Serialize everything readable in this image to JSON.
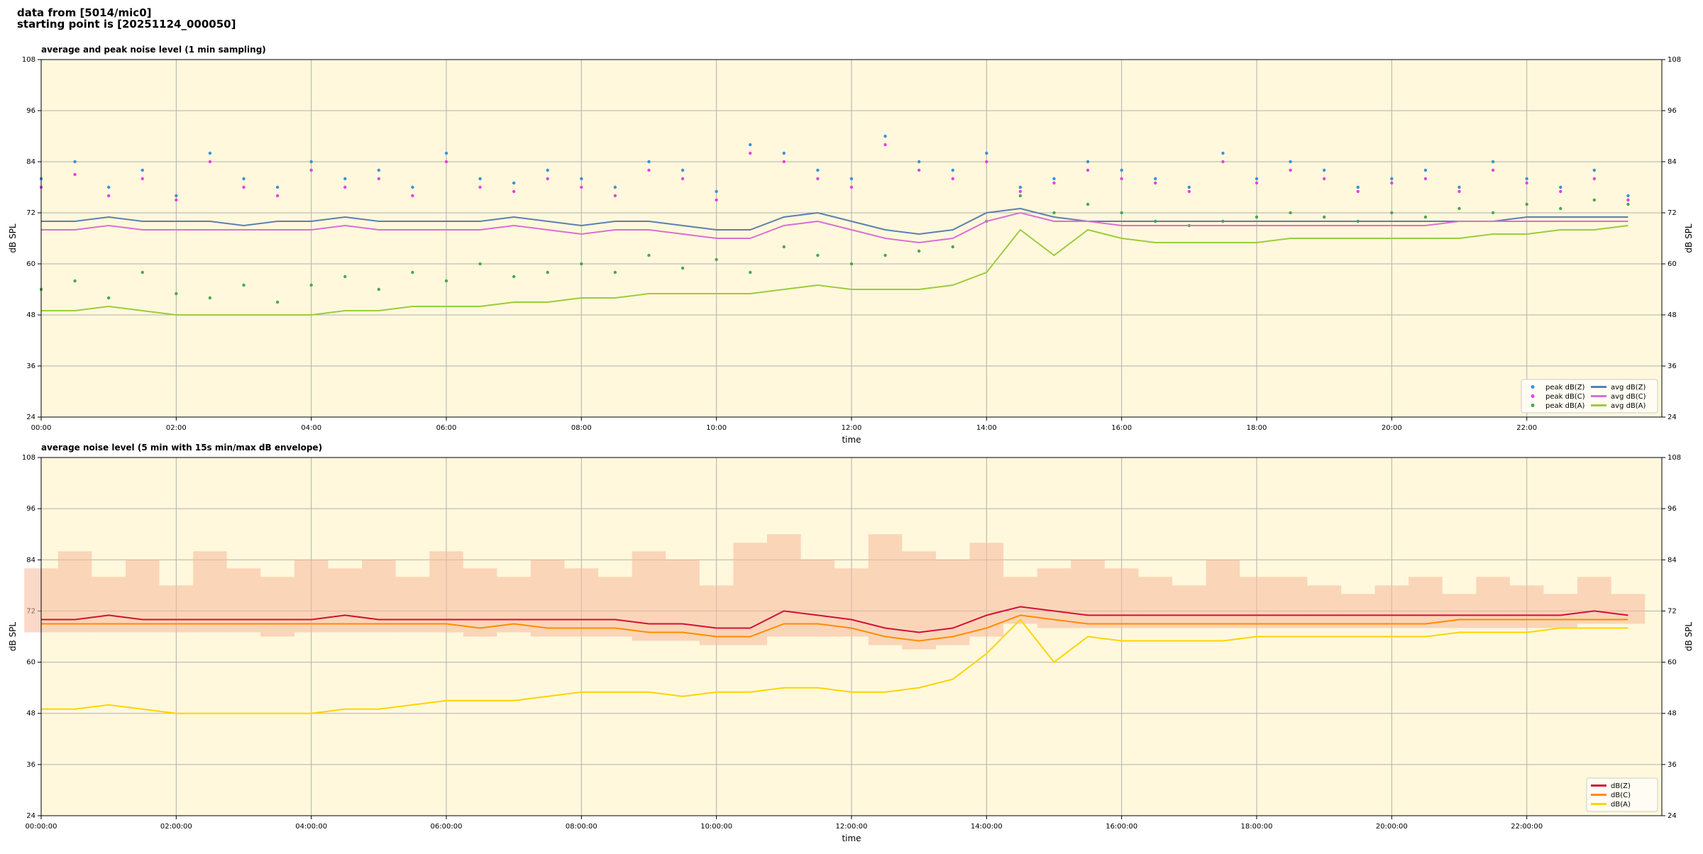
{
  "figure_title": [
    "data from [5014/mic0]",
    "starting point is [20251124_000050]"
  ],
  "chart_data": [
    {
      "type": "line",
      "title": "average and peak noise level (1 min sampling)",
      "xlabel": "time",
      "ylabel": "dB SPL",
      "xlim": [
        0,
        24
      ],
      "ylim": [
        24,
        108
      ],
      "yticks": [
        24,
        36,
        48,
        60,
        72,
        84,
        96,
        108
      ],
      "grid": true,
      "legend": "lower right",
      "xticks": [
        {
          "value": 0,
          "label": "00:00"
        },
        {
          "value": 2,
          "label": "02:00"
        },
        {
          "value": 4,
          "label": "04:00"
        },
        {
          "value": 6,
          "label": "06:00"
        },
        {
          "value": 8,
          "label": "08:00"
        },
        {
          "value": 10,
          "label": "10:00"
        },
        {
          "value": 12,
          "label": "12:00"
        },
        {
          "value": 14,
          "label": "14:00"
        },
        {
          "value": 16,
          "label": "16:00"
        },
        {
          "value": 18,
          "label": "18:00"
        },
        {
          "value": 20,
          "label": "20:00"
        },
        {
          "value": 22,
          "label": "22:00"
        }
      ],
      "x": [
        0,
        0.5,
        1,
        1.5,
        2,
        2.5,
        3,
        3.5,
        4,
        4.5,
        5,
        5.5,
        6,
        6.5,
        7,
        7.5,
        8,
        8.5,
        9,
        9.5,
        10,
        10.5,
        11,
        11.5,
        12,
        12.5,
        13,
        13.5,
        14,
        14.5,
        15,
        15.5,
        16,
        16.5,
        17,
        17.5,
        18,
        18.5,
        19,
        19.5,
        20,
        20.5,
        21,
        21.5,
        22,
        22.5,
        23,
        23.5
      ],
      "series": [
        {
          "name": "peak dB(Z)",
          "type": "scatter",
          "color": "#3b8fd9",
          "values": [
            80,
            84,
            78,
            82,
            76,
            86,
            80,
            78,
            84,
            80,
            82,
            78,
            86,
            80,
            79,
            82,
            80,
            78,
            84,
            82,
            77,
            88,
            86,
            82,
            80,
            90,
            84,
            82,
            86,
            78,
            80,
            84,
            82,
            80,
            78,
            86,
            80,
            84,
            82,
            78,
            80,
            82,
            78,
            84,
            80,
            78,
            82,
            76
          ]
        },
        {
          "name": "peak dB(C)",
          "type": "scatter",
          "color": "#e83ee8",
          "values": [
            78,
            81,
            76,
            80,
            75,
            84,
            78,
            76,
            82,
            78,
            80,
            76,
            84,
            78,
            77,
            80,
            78,
            76,
            82,
            80,
            75,
            86,
            84,
            80,
            78,
            88,
            82,
            80,
            84,
            77,
            79,
            82,
            80,
            79,
            77,
            84,
            79,
            82,
            80,
            77,
            79,
            80,
            77,
            82,
            79,
            77,
            80,
            75
          ]
        },
        {
          "name": "peak dB(A)",
          "type": "scatter",
          "color": "#4aa84a",
          "values": [
            54,
            56,
            52,
            58,
            53,
            52,
            55,
            51,
            55,
            57,
            54,
            58,
            56,
            60,
            57,
            58,
            60,
            58,
            62,
            59,
            61,
            58,
            64,
            62,
            60,
            62,
            63,
            64,
            70,
            76,
            72,
            74,
            72,
            70,
            69,
            70,
            71,
            72,
            71,
            70,
            72,
            71,
            73,
            72,
            74,
            73,
            75,
            74
          ]
        },
        {
          "name": "avg dB(Z)",
          "type": "line",
          "color": "#5b7fb0",
          "values": [
            70,
            70,
            71,
            70,
            70,
            70,
            69,
            70,
            70,
            71,
            70,
            70,
            70,
            70,
            71,
            70,
            69,
            70,
            70,
            69,
            68,
            68,
            71,
            72,
            70,
            68,
            67,
            68,
            72,
            73,
            71,
            70,
            70,
            70,
            70,
            70,
            70,
            70,
            70,
            70,
            70,
            70,
            70,
            70,
            71,
            71,
            71,
            71
          ]
        },
        {
          "name": "avg dB(C)",
          "type": "line",
          "color": "#d96fd6",
          "values": [
            68,
            68,
            69,
            68,
            68,
            68,
            68,
            68,
            68,
            69,
            68,
            68,
            68,
            68,
            69,
            68,
            67,
            68,
            68,
            67,
            66,
            66,
            69,
            70,
            68,
            66,
            65,
            66,
            70,
            72,
            70,
            70,
            69,
            69,
            69,
            69,
            69,
            69,
            69,
            69,
            69,
            69,
            70,
            70,
            70,
            70,
            70,
            70
          ]
        },
        {
          "name": "avg dB(A)",
          "type": "line",
          "color": "#9ccc3c",
          "values": [
            49,
            49,
            50,
            49,
            48,
            48,
            48,
            48,
            48,
            49,
            49,
            50,
            50,
            50,
            51,
            51,
            52,
            52,
            53,
            53,
            53,
            53,
            54,
            55,
            54,
            54,
            54,
            55,
            58,
            68,
            62,
            68,
            66,
            65,
            65,
            65,
            65,
            66,
            66,
            66,
            66,
            66,
            66,
            67,
            67,
            68,
            68,
            69
          ]
        }
      ]
    },
    {
      "type": "line",
      "title": "average noise level (5 min with 15s min/max dB envelope)",
      "xlabel": "time",
      "ylabel": "dB SPL",
      "xlim": [
        0,
        24
      ],
      "ylim": [
        24,
        108
      ],
      "yticks": [
        24,
        36,
        48,
        60,
        72,
        84,
        96,
        108
      ],
      "grid": true,
      "legend": "lower right",
      "xticks": [
        {
          "value": 0,
          "label": "00:00:00"
        },
        {
          "value": 2,
          "label": "02:00:00"
        },
        {
          "value": 4,
          "label": "04:00:00"
        },
        {
          "value": 6,
          "label": "06:00:00"
        },
        {
          "value": 8,
          "label": "08:00:00"
        },
        {
          "value": 10,
          "label": "10:00:00"
        },
        {
          "value": 12,
          "label": "12:00:00"
        },
        {
          "value": 14,
          "label": "14:00:00"
        },
        {
          "value": 16,
          "label": "16:00:00"
        },
        {
          "value": 18,
          "label": "18:00:00"
        },
        {
          "value": 20,
          "label": "20:00:00"
        },
        {
          "value": 22,
          "label": "22:00:00"
        }
      ],
      "x": [
        0,
        0.5,
        1,
        1.5,
        2,
        2.5,
        3,
        3.5,
        4,
        4.5,
        5,
        5.5,
        6,
        6.5,
        7,
        7.5,
        8,
        8.5,
        9,
        9.5,
        10,
        10.5,
        11,
        11.5,
        12,
        12.5,
        13,
        13.5,
        14,
        14.5,
        15,
        15.5,
        16,
        16.5,
        17,
        17.5,
        18,
        18.5,
        19,
        19.5,
        20,
        20.5,
        21,
        21.5,
        22,
        22.5,
        23,
        23.5
      ],
      "envelope": {
        "color": "#f7b89a",
        "low": [
          67,
          67,
          67,
          67,
          67,
          67,
          67,
          66,
          67,
          67,
          67,
          67,
          67,
          66,
          67,
          66,
          66,
          66,
          65,
          65,
          64,
          64,
          66,
          66,
          66,
          64,
          63,
          64,
          66,
          69,
          68,
          68,
          68,
          68,
          68,
          68,
          68,
          68,
          68,
          68,
          68,
          68,
          68,
          68,
          68,
          68,
          69,
          69
        ],
        "high": [
          82,
          86,
          80,
          84,
          78,
          86,
          82,
          80,
          84,
          82,
          84,
          80,
          86,
          82,
          80,
          84,
          82,
          80,
          86,
          84,
          78,
          88,
          90,
          84,
          82,
          90,
          86,
          84,
          88,
          80,
          82,
          84,
          82,
          80,
          78,
          84,
          80,
          80,
          78,
          76,
          78,
          80,
          76,
          80,
          78,
          76,
          80,
          76
        ]
      },
      "series": [
        {
          "name": "dB(Z)",
          "type": "line",
          "color": "#d0103a",
          "values": [
            70,
            70,
            71,
            70,
            70,
            70,
            70,
            70,
            70,
            71,
            70,
            70,
            70,
            70,
            70,
            70,
            70,
            70,
            69,
            69,
            68,
            68,
            72,
            71,
            70,
            68,
            67,
            68,
            71,
            73,
            72,
            71,
            71,
            71,
            71,
            71,
            71,
            71,
            71,
            71,
            71,
            71,
            71,
            71,
            71,
            71,
            72,
            71
          ]
        },
        {
          "name": "dB(C)",
          "type": "line",
          "color": "#ff8c00",
          "values": [
            69,
            69,
            69,
            69,
            69,
            69,
            69,
            69,
            69,
            69,
            69,
            69,
            69,
            68,
            69,
            68,
            68,
            68,
            67,
            67,
            66,
            66,
            69,
            69,
            68,
            66,
            65,
            66,
            68,
            71,
            70,
            69,
            69,
            69,
            69,
            69,
            69,
            69,
            69,
            69,
            69,
            69,
            70,
            70,
            70,
            70,
            70,
            70
          ]
        },
        {
          "name": "dB(A)",
          "type": "line",
          "color": "#ffd400",
          "values": [
            49,
            49,
            50,
            49,
            48,
            48,
            48,
            48,
            48,
            49,
            49,
            50,
            51,
            51,
            51,
            52,
            53,
            53,
            53,
            52,
            53,
            53,
            54,
            54,
            53,
            53,
            54,
            56,
            62,
            70,
            60,
            66,
            65,
            65,
            65,
            65,
            66,
            66,
            66,
            66,
            66,
            66,
            67,
            67,
            67,
            68,
            68,
            68
          ]
        }
      ]
    }
  ]
}
